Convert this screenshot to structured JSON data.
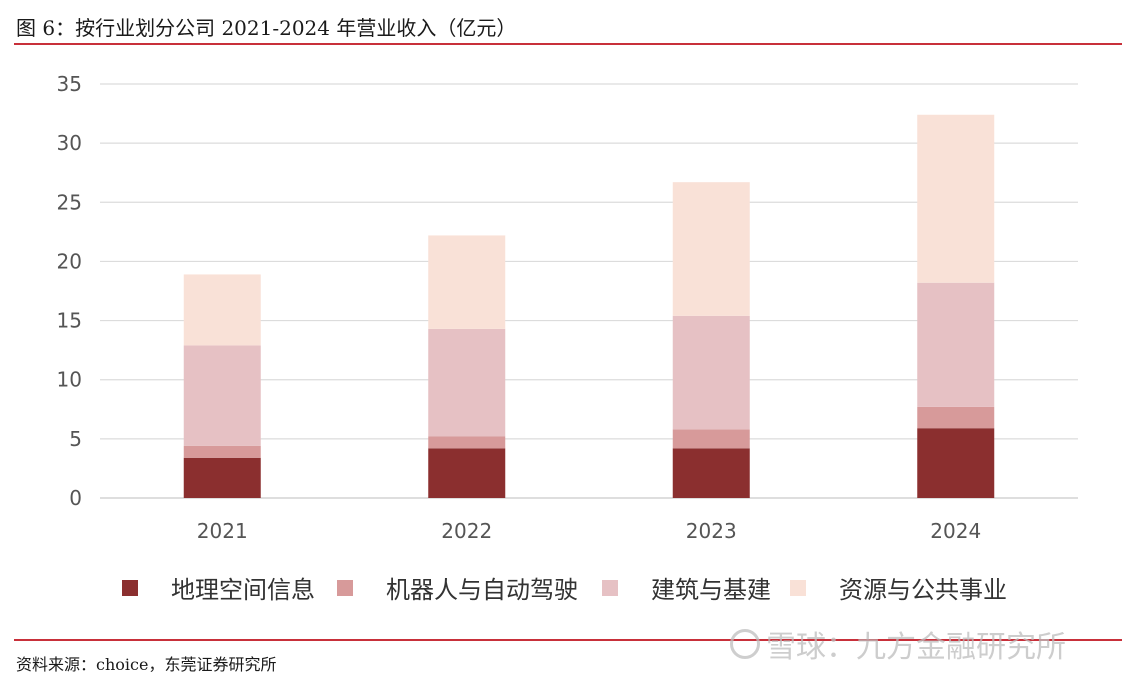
{
  "title": "图 6：按行业划分公司 2021-2024 年营业收入（亿元）",
  "source": "资料来源：choice，东莞证券研究所",
  "watermark": "雪球：九方金融研究所",
  "watermark_icon": "snowball-logo-icon",
  "colors": {
    "rule": "#c8303a",
    "grid": "#dcdcdc",
    "series": [
      "#8b2f2f",
      "#d79a9a",
      "#e6c1c4",
      "#f9e1d7"
    ]
  },
  "chart_data": {
    "type": "bar",
    "stacked": true,
    "title": "",
    "xlabel": "",
    "ylabel": "",
    "categories": [
      "2021",
      "2022",
      "2023",
      "2024"
    ],
    "ylim": [
      0,
      35
    ],
    "yticks": [
      0,
      5,
      10,
      15,
      20,
      25,
      30,
      35
    ],
    "grid": true,
    "legend_position": "bottom",
    "series": [
      {
        "name": "地理空间信息",
        "values": [
          3.4,
          4.2,
          4.2,
          5.9
        ]
      },
      {
        "name": "机器人与自动驾驶",
        "values": [
          1.0,
          1.0,
          1.6,
          1.8
        ]
      },
      {
        "name": "建筑与基建",
        "values": [
          8.5,
          9.1,
          9.6,
          10.5
        ]
      },
      {
        "name": "资源与公共事业",
        "values": [
          6.0,
          7.9,
          11.3,
          14.2
        ]
      }
    ]
  }
}
